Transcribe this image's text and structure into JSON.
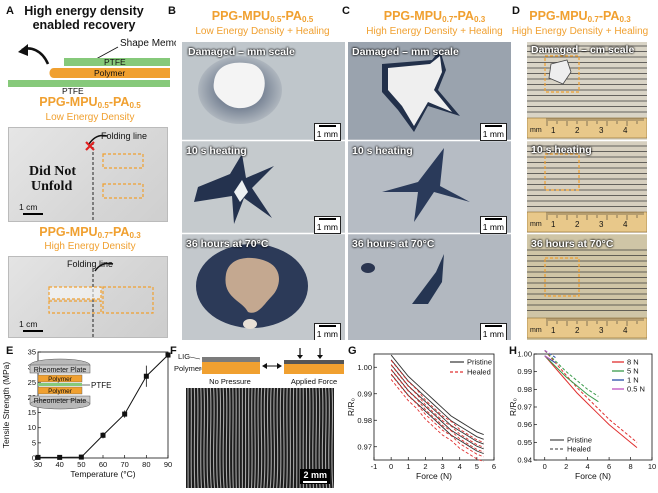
{
  "labels": {
    "A": "A",
    "B": "B",
    "C": "C",
    "D": "D",
    "E": "E",
    "F": "F",
    "G": "G",
    "H": "H"
  },
  "panelA": {
    "heading_line1": "High energy density",
    "heading_line2": "enabled recovery",
    "shape_memory": "Shape Memory",
    "ptfe_top": "PTFE",
    "polymer": "Polymer",
    "ptfe_bottom": "PTFE",
    "mat1": {
      "main": "PPG-MPU",
      "s1": "0.5",
      "mid": "-PA",
      "s2": "0.5"
    },
    "mat1_sub": "Low Energy Density",
    "folding_line1": "Folding line",
    "did_not": "Did Not",
    "unfold": "Unfold",
    "scale1": "1 cm",
    "mat2": {
      "main": "PPG-MPU",
      "s1": "0.7",
      "mid": "-PA",
      "s2": "0.3"
    },
    "mat2_sub": "High Energy Density",
    "folding_line2": "Folding line",
    "scale2": "1 cm"
  },
  "panelB": {
    "title": {
      "main": "PPG-MPU",
      "s1": "0.5",
      "mid": "-PA",
      "s2": "0.5"
    },
    "subtitle": "Low Energy Density + Healing",
    "cap1": "Damaged – mm scale",
    "cap2": "10 s heating",
    "cap3": "36 hours at 70°C",
    "scale": "1 mm"
  },
  "panelC": {
    "title": {
      "main": "PPG-MPU",
      "s1": "0.7",
      "mid": "-PA",
      "s2": "0.3"
    },
    "subtitle": "High Energy Density + Healing",
    "cap1": "Damaged – mm scale",
    "cap2": "10 s heating",
    "cap3": "36 hours at 70°C",
    "scale": "1 mm"
  },
  "panelD": {
    "title": {
      "main": "PPG-MPU",
      "s1": "0.7",
      "mid": "-PA",
      "s2": "0.3"
    },
    "subtitle": "High Energy Density + Healing",
    "cap1": "Damaged – cm scale",
    "cap2": "10 s heating",
    "cap3": "36 hours at 70°C",
    "ruler_unit": "mm",
    "ruler_nums": [
      "1",
      "2",
      "3",
      "4"
    ]
  },
  "panelE": {
    "rheo_top": "Rheometer Plate",
    "poly_top": "Polymer",
    "ptfe": "PTFE",
    "poly_bottom": "Polymer",
    "rheo_bottom": "Rheometer Plate"
  },
  "panelF": {
    "lig": "LIG",
    "polymer": "Polymer",
    "no_pressure": "No Pressure",
    "applied_force": "Applied Force",
    "scale": "2 mm"
  },
  "chart_data": [
    {
      "id": "E",
      "type": "line",
      "xlabel": "Temperature (°C)",
      "ylabel": "Tensile Strength (MPa)",
      "xlim": [
        30,
        90
      ],
      "ylim": [
        0,
        35
      ],
      "xticks": [
        30,
        40,
        50,
        60,
        70,
        80,
        90
      ],
      "yticks": [
        0,
        5,
        10,
        15,
        20,
        25,
        30,
        35
      ],
      "x": [
        30,
        40,
        50,
        60,
        70,
        80,
        90
      ],
      "y": [
        0.2,
        0.2,
        0.3,
        7.5,
        14.5,
        27,
        34
      ],
      "err": [
        0.2,
        0.2,
        0.2,
        1.0,
        1.2,
        3.5,
        1.0
      ],
      "marker": "square",
      "grid": false
    },
    {
      "id": "G",
      "type": "line",
      "xlabel": "Force (N)",
      "ylabel": "R/R₀",
      "xlim": [
        -1,
        6
      ],
      "ylim": [
        0.965,
        1.005
      ],
      "xticks": [
        -1,
        0,
        1,
        2,
        3,
        4,
        5,
        6
      ],
      "yticks": [
        0.97,
        0.98,
        0.99,
        1.0
      ],
      "ytick_labels": [
        "0.97",
        "0.98",
        "0.99",
        "1.00"
      ],
      "legend": "top-right",
      "series": [
        {
          "name": "Pristine",
          "color": "#333333",
          "dash": false,
          "x": [
            0,
            0.5,
            1,
            1.5,
            2,
            2.5,
            3,
            3.5,
            4,
            4.5,
            5,
            5.4
          ],
          "y": [
            1.001,
            0.997,
            0.993,
            0.99,
            0.987,
            0.984,
            0.981,
            0.978,
            0.976,
            0.974,
            0.972,
            0.971
          ]
        },
        {
          "name": "Healed",
          "color": "#e03030",
          "dash": true,
          "x": [
            0,
            0.5,
            1,
            1.5,
            2,
            2.5,
            3,
            3.5,
            4,
            4.5,
            5,
            5.4
          ],
          "y": [
            0.999,
            0.995,
            0.991,
            0.988,
            0.984,
            0.981,
            0.978,
            0.976,
            0.973,
            0.971,
            0.969,
            0.968
          ]
        }
      ]
    },
    {
      "id": "H",
      "type": "line",
      "xlabel": "Force (N)",
      "ylabel": "R/R₀",
      "xlim": [
        -1,
        10
      ],
      "ylim": [
        0.94,
        1.0
      ],
      "xticks": [
        0,
        2,
        4,
        6,
        8,
        10
      ],
      "yticks": [
        0.94,
        0.95,
        0.96,
        0.97,
        0.98,
        0.99,
        1.0
      ],
      "ytick_labels": [
        "0.94",
        "0.95",
        "0.96",
        "0.97",
        "0.98",
        "0.99",
        "1.00"
      ],
      "legend": "top-right",
      "series": [
        {
          "name": "8 N",
          "color": "#e03030",
          "x": [
            0,
            1,
            2,
            3,
            4,
            5,
            6,
            7,
            8,
            8.6
          ],
          "y": [
            0.999,
            0.992,
            0.985,
            0.978,
            0.972,
            0.966,
            0.96,
            0.955,
            0.95,
            0.947
          ]
        },
        {
          "name": "5 N",
          "color": "#3a9a4a",
          "x": [
            0,
            1,
            2,
            3,
            4,
            5
          ],
          "y": [
            0.999,
            0.993,
            0.987,
            0.982,
            0.977,
            0.973
          ]
        },
        {
          "name": "1 N",
          "color": "#2a4fa8",
          "x": [
            0,
            0.5,
            1
          ],
          "y": [
            0.999,
            0.997,
            0.995
          ]
        },
        {
          "name": "0.5 N",
          "color": "#c050c0",
          "x": [
            0,
            0.25,
            0.5
          ],
          "y": [
            0.999,
            0.998,
            0.997
          ]
        }
      ],
      "style_legend": [
        {
          "name": "Pristine",
          "dash": false
        },
        {
          "name": "Healed",
          "dash": true
        }
      ]
    }
  ]
}
